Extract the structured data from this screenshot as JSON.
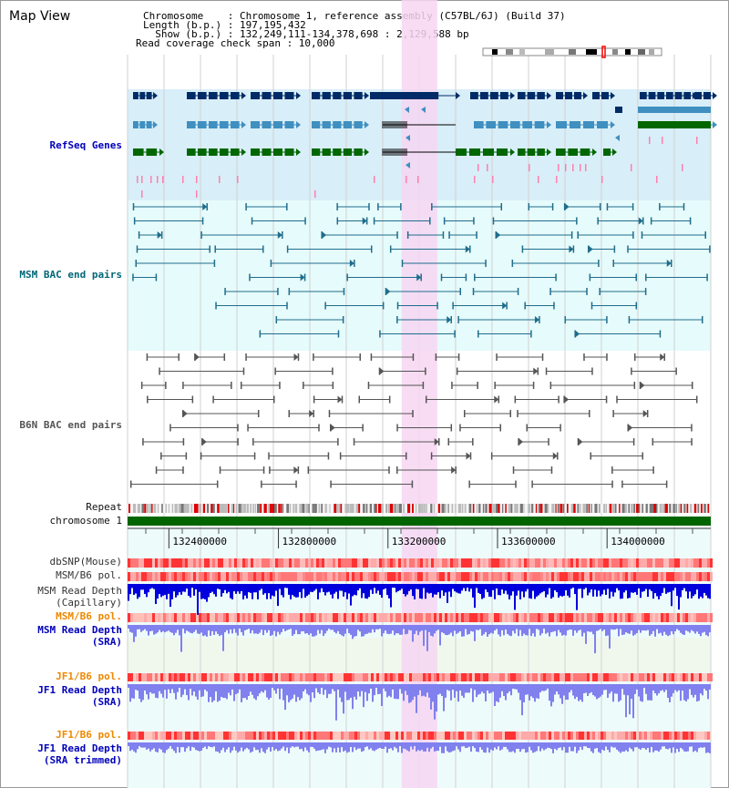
{
  "title": "Map View",
  "info": {
    "chromosome": "Chromosome    : Chromosome 1, reference assembly (C57BL/6J) (Build 37)",
    "length": "Length (b.p.) : 197,195,432",
    "show": "  Show (b.p.) : 132,249,111-134,378,698 : 2,129,588 bp",
    "coverage": "Read coverage check span : 10,000"
  },
  "tracks": {
    "refseq": "RefSeq Genes",
    "msm_bac": "MSM BAC end pairs",
    "b6n_bac": "B6N BAC end pairs",
    "repeat": "Repeat",
    "chromosome": "chromosome 1",
    "dbsnp": "dbSNP(Mouse)",
    "msm_pol_1": "MSM/B6 pol.",
    "msm_depth_cap_1": "MSM Read Depth",
    "msm_depth_cap_2": "(Capillary)",
    "msm_pol_2": "MSM/B6 pol.",
    "msm_depth_sra_1": "MSM Read Depth",
    "msm_depth_sra_2": "(SRA)",
    "jf1_pol_1": "JF1/B6 pol.",
    "jf1_depth_sra_1": "JF1 Read Depth",
    "jf1_depth_sra_2": "(SRA)",
    "jf1_pol_2": "JF1/B6 pol.",
    "jf1_depth_trim_1": "JF1 Read Depth",
    "jf1_depth_trim_2": "(SRA trimmed)"
  },
  "axis": {
    "ticks": [
      {
        "label": "132400000",
        "pos": 132400000
      },
      {
        "label": "132800000",
        "pos": 132800000
      },
      {
        "label": "133200000",
        "pos": 133200000
      },
      {
        "label": "133600000",
        "pos": 133600000
      },
      {
        "label": "134000000",
        "pos": 134000000
      }
    ]
  },
  "view_range": [
    132249111,
    134378698
  ],
  "highlight_range": [
    133250000,
    133380000
  ],
  "colors": {
    "refseq_dark": "#002b66",
    "refseq_mid": "#3f8fc0",
    "refseq_green": "#006600",
    "refseq_bg": "#d8eef8",
    "msm_bac": "#1f6d8c",
    "b6n_bac": "#555555",
    "highlight": "#f6d6f2",
    "chromosome_bar": "#006400",
    "depth_dark": "#0000dd",
    "depth_light": "#8080ee"
  }
}
